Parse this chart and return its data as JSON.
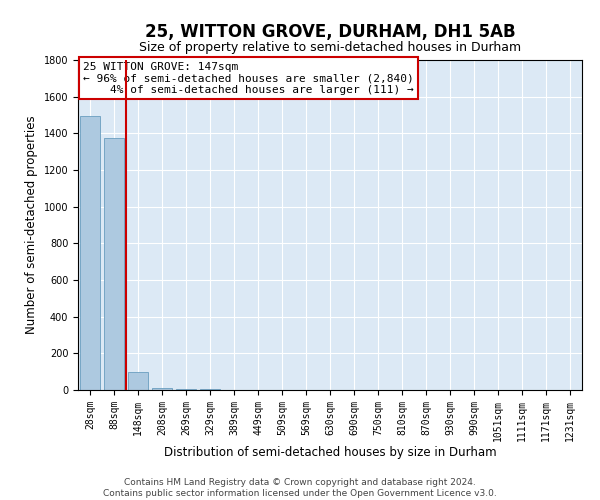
{
  "title": "25, WITTON GROVE, DURHAM, DH1 5AB",
  "subtitle": "Size of property relative to semi-detached houses in Durham",
  "xlabel": "Distribution of semi-detached houses by size in Durham",
  "ylabel": "Number of semi-detached properties",
  "footer_line1": "Contains HM Land Registry data © Crown copyright and database right 2024.",
  "footer_line2": "Contains public sector information licensed under the Open Government Licence v3.0.",
  "property_label": "25 WITTON GROVE: 147sqm",
  "pct_smaller": 96,
  "pct_larger": 4,
  "n_smaller": 2840,
  "n_larger": 111,
  "categories": [
    "28sqm",
    "88sqm",
    "148sqm",
    "208sqm",
    "269sqm",
    "329sqm",
    "389sqm",
    "449sqm",
    "509sqm",
    "569sqm",
    "630sqm",
    "690sqm",
    "750sqm",
    "810sqm",
    "870sqm",
    "930sqm",
    "990sqm",
    "1051sqm",
    "1111sqm",
    "1171sqm",
    "1231sqm"
  ],
  "values": [
    1497,
    1376,
    97,
    12,
    4,
    3,
    2,
    2,
    1,
    0,
    1,
    0,
    0,
    0,
    0,
    0,
    0,
    0,
    0,
    0,
    0
  ],
  "bar_color": "#adc9e0",
  "bar_edge_color": "#6a9ec0",
  "highlight_line_color": "#cc0000",
  "box_edge_color": "#cc0000",
  "box_face_color": "#ffffff",
  "bg_color": "#ffffff",
  "plot_bg_color": "#dce9f5",
  "grid_color": "#ffffff",
  "ylim": [
    0,
    1800
  ],
  "title_fontsize": 12,
  "subtitle_fontsize": 9,
  "axis_label_fontsize": 8.5,
  "tick_fontsize": 7,
  "footer_fontsize": 6.5,
  "annotation_fontsize": 8
}
